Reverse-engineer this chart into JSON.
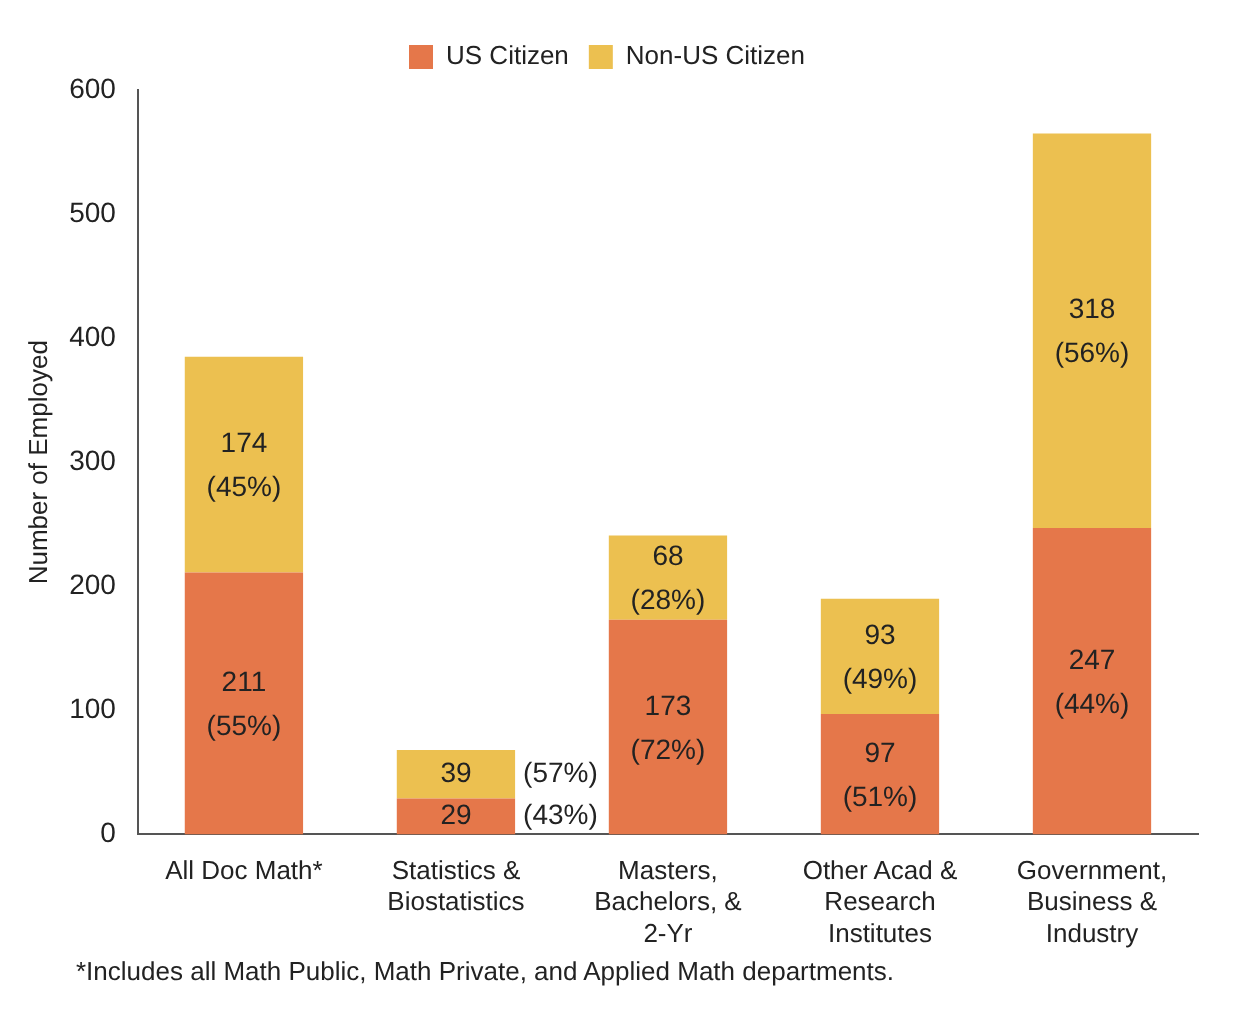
{
  "chart_data": {
    "type": "bar",
    "stacked": true,
    "ylabel": "Number of Employed",
    "categories": [
      "All Doc Math*",
      "Statistics & Biostatistics",
      "Masters, Bachelors, & 2-Yr",
      "Other Acad & Research Institutes",
      "Government, Business & Industry"
    ],
    "series": [
      {
        "name": "US Citizen",
        "color": "#e5774a",
        "values": [
          211,
          29,
          173,
          97,
          247
        ],
        "value_labels": [
          "211 (55%)",
          "29 (43%)",
          "173 (72%)",
          "97 (51%)",
          "247 (44%)"
        ]
      },
      {
        "name": "Non-US Citizen",
        "color": "#ecc050",
        "values": [
          174,
          39,
          68,
          93,
          318
        ],
        "value_labels": [
          "174 (45%)",
          "39 (57%)",
          "68 (28%)",
          "93 (49%)",
          "318 (56%)"
        ]
      }
    ],
    "ylim": [
      0,
      600
    ],
    "yticks": [
      0,
      100,
      200,
      300,
      400,
      500,
      600
    ],
    "grid": false,
    "legend": "top",
    "annotations": [
      "*Includes all Math Public, Math Private, and Applied Math departments."
    ]
  }
}
